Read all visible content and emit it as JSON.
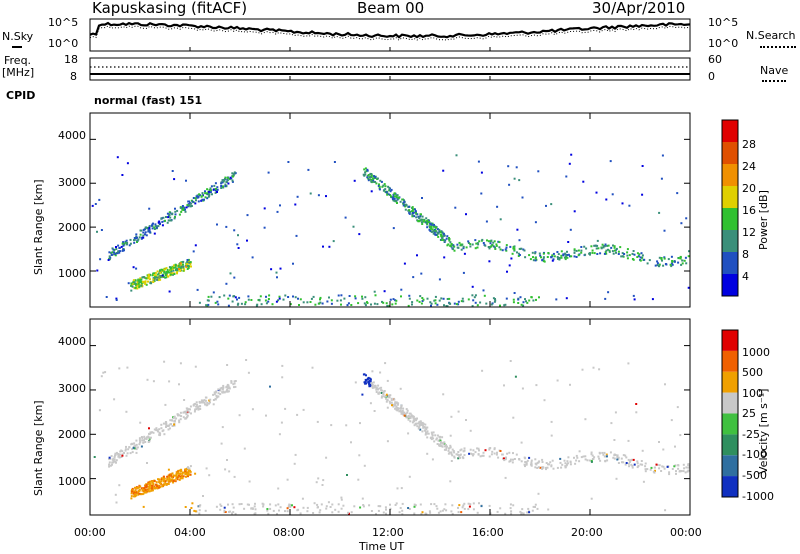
{
  "header": {
    "station": "Kapuskasing (fitACF)",
    "beam": "Beam 00",
    "date": "30/Apr/2010"
  },
  "top_panels": {
    "nsky_label": "N.Sky",
    "nsky_ticks": [
      "10^5",
      "10^0"
    ],
    "nsearch_label": "N.Search",
    "nsearch_ticks": [
      "10^5",
      "10^0"
    ],
    "freq_label": "Freq.",
    "freq_unit": "[MHz]",
    "freq_ticks": [
      "18",
      "8"
    ],
    "nave_label": "Nave",
    "nave_ticks": [
      "60",
      "0"
    ],
    "cpid_label": "CPID",
    "cpid_text": "normal (fast) 151"
  },
  "chart_data": [
    {
      "type": "heatmap",
      "title": "",
      "ylabel": "Slant Range [km]",
      "xlabel": "",
      "xlim": [
        "00:00",
        "24:00"
      ],
      "ylim": [
        180,
        4600
      ],
      "y_ticks": [
        "4000",
        "3000",
        "2000",
        "1000"
      ],
      "y_tick_values": [
        4000,
        3000,
        2000,
        1000
      ],
      "colorbar": {
        "label": "Power [dB]",
        "ticks": [
          "28",
          "24",
          "20",
          "16",
          "12",
          "8",
          "4"
        ],
        "tick_values": [
          28,
          24,
          20,
          16,
          12,
          8,
          4
        ],
        "range": [
          0,
          30
        ],
        "colors": [
          "#0000e0",
          "#2050c0",
          "#3a8f7a",
          "#30c030",
          "#e0d000",
          "#f09000",
          "#e05000",
          "#e00000"
        ]
      },
      "features": [
        {
          "name": "band-a",
          "start_h": 0.7,
          "end_h": 5.8,
          "start_km": 1380,
          "end_km": 3200,
          "power_db": 8
        },
        {
          "name": "band-b",
          "start_h": 1.6,
          "end_h": 4.0,
          "start_km": 680,
          "end_km": 1200,
          "power_db": 14
        },
        {
          "name": "band-c",
          "start_h": 10.9,
          "end_h": 14.5,
          "start_km": 3300,
          "end_km": 1600,
          "power_db": 10
        },
        {
          "name": "band-d",
          "start_h": 14.5,
          "end_h": 24.0,
          "start_km": 1600,
          "end_km": 1380,
          "power_db": 10
        }
      ]
    },
    {
      "type": "heatmap",
      "title": "",
      "ylabel": "Slant Range [km]",
      "xlabel": "Time UT",
      "xlim": [
        "00:00",
        "24:00"
      ],
      "ylim": [
        180,
        4600
      ],
      "x_ticks": [
        "00:00",
        "04:00",
        "08:00",
        "12:00",
        "16:00",
        "20:00",
        "00:00"
      ],
      "x_tick_hours": [
        0,
        4,
        8,
        12,
        16,
        20,
        24
      ],
      "y_ticks": [
        "4000",
        "3000",
        "2000",
        "1000"
      ],
      "y_tick_values": [
        4000,
        3000,
        2000,
        1000
      ],
      "colorbar": {
        "label": "Velocity [m s⁻¹]",
        "ticks": [
          "1000",
          "500",
          "100",
          "25",
          "-25",
          "-100",
          "-500",
          "-1000"
        ],
        "colors": [
          "#1030c0",
          "#2f6fa0",
          "#2f8f5f",
          "#40c040",
          "#c8c8c8",
          "#f0a000",
          "#f06000",
          "#e00000"
        ]
      }
    }
  ]
}
